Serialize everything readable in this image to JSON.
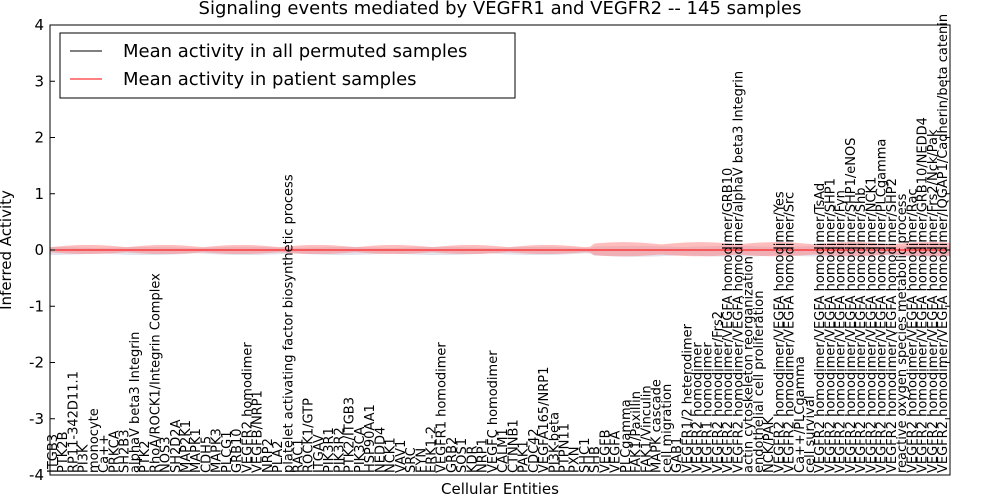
{
  "chart_data": {
    "type": "line",
    "title": "Signaling events mediated by VEGFR1 and VEGFR2 -- 145 samples",
    "xlabel": "Cellular Entities",
    "ylabel": "Inferred Activity",
    "ylim": [
      -4,
      4
    ],
    "yticks": [
      -4,
      -3,
      -2,
      -1,
      0,
      1,
      2,
      3,
      4
    ],
    "legend_position": "top-left",
    "series": [
      {
        "name": "Mean activity in all permuted samples",
        "color": "#000000"
      },
      {
        "name": "Mean activity in patient samples",
        "color": "#ff0000"
      }
    ],
    "categories": [
      "ITGB3",
      "PTK2B",
      "RP11-342D11.1",
      "PI3K",
      "monocyte",
      "Ca++",
      "PRKCA",
      "SH2B3",
      "alphaV beta3 Integrin",
      "PTK2",
      "RhoA/ROCK1/Integrin Complex",
      "NOS3",
      "SH2D2A",
      "MAP2K1",
      "MAPK1",
      "CDH5",
      "MAPK3",
      "PLCG1",
      "GRB10",
      "VEGFR2 homodimer",
      "VEGFB/NRP1",
      "NRP2",
      "PLA2",
      "platelet activating factor biosynthetic process",
      "RAC1",
      "ROCK1/GTP",
      "ITGAV",
      "PIK3R1",
      "PIK3R2",
      "PTK2/ITGB3",
      "PIK3CA",
      "HSP90AA1",
      "NEDD4",
      "NCK1",
      "VAV1",
      "SRC",
      "FYN",
      "ERK1-2",
      "VEGFR1 homodimer",
      "GRB2",
      "SOS1",
      "KDR",
      "NRP1",
      "VEGFC homodimer",
      "CALM1",
      "CTNNB1",
      "PAK1",
      "CDC42",
      "VEGFA165/NRP1",
      "PI3K-beta",
      "PTPN11",
      "PXN",
      "SHC1",
      "SHB",
      "VEGFB",
      "VEGFA",
      "PLCgamma",
      "FAK1/Paxillin",
      "FAK1/Vinculin",
      "MAPK cascade",
      "cell migration",
      "GAB1",
      "VEGFR1/2 heterodimer",
      "VEGFR2 homodimer",
      "VEGFR1 homodimer",
      "VEGFR2 homodimer/Frs2",
      "VEGFR2 homodimer/VEGFA homodimer/GRB10",
      "VEGFR2 homodimer/VEGFA homodimer/alphaV beta3 Integrin",
      "actin cytoskeleton reorganization",
      "endothelial cell proliferation",
      "NCK/PAK",
      "VEGFR2 homodimer/VEGFA homodimer/Yes",
      "VEGFR2 homodimer/VEGFA homodimer/Src",
      "Ca++/PLCgamma",
      "cell survival",
      "VEGFR2 homodimer/VEGFA homodimer/TsAd",
      "VEGFR2 homodimer/VEGFA homodimer/SHP1",
      "VEGFR2 homodimer/VEGFA homodimer/Fyn",
      "VEGFR2 homodimer/VEGFA homodimer/SHP1/eNOS",
      "VEGFR2 homodimer/VEGFA homodimer/Shb",
      "VEGFR2 homodimer/VEGFA homodimer/NCK1",
      "VEGFR2 homodimer/VEGFA homodimer/PLCgamma",
      "VEGFR2 homodimer/VEGFA homodimer/SHP2",
      "reactive oxygen species metabolic process",
      "VEGFR2 homodimer/VEGFA homodimer/Rac",
      "VEGFR2 homodimer/VEGFA homodimer/GRB10/NEDD4",
      "VEGFR2 homodimer/VEGFA homodimer/Frs2/Nck/Pak",
      "VEGFR2 homodimer/VEGFA homodimer/IQGAP1/Cadherin/beta catenin"
    ]
  }
}
